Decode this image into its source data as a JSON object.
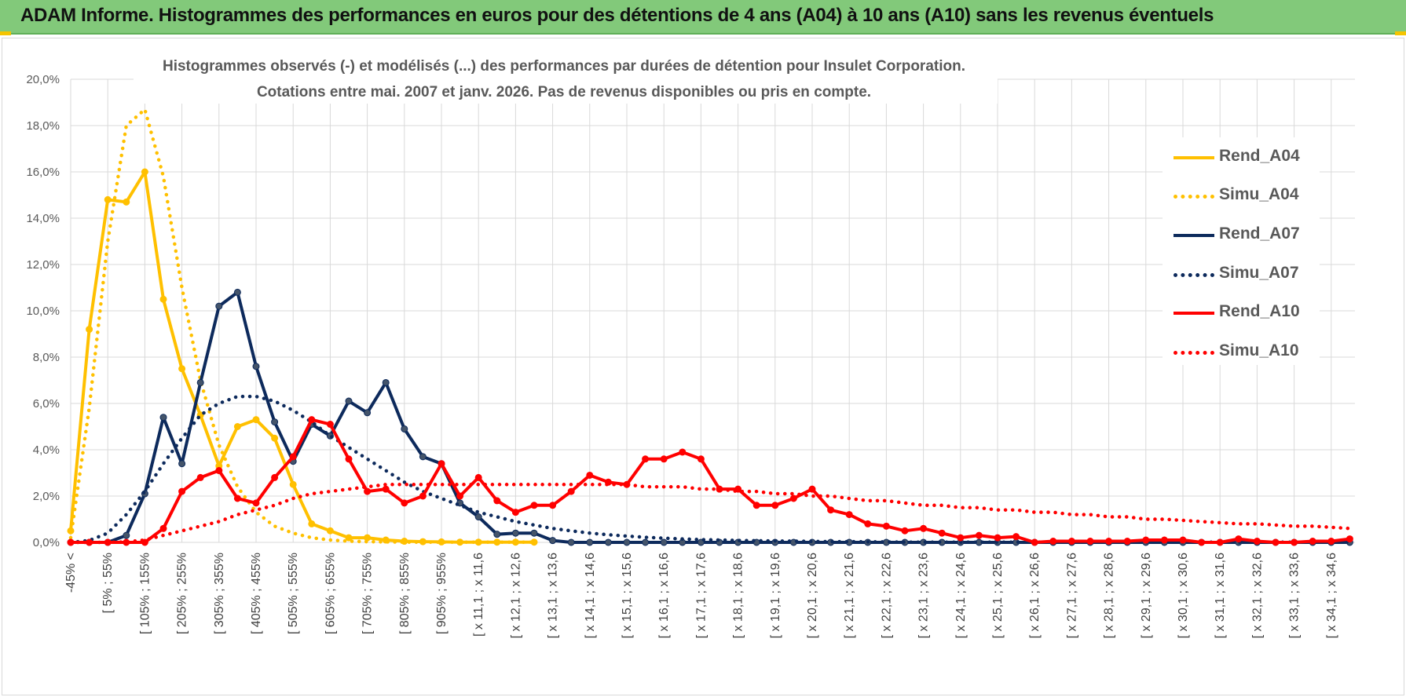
{
  "header": {
    "title": "ADAM Informe. Histogrammes des performances en euros pour des détentions de 4 ans (A04) à 10 ans (A10) sans les revenus éventuels"
  },
  "chart_data": {
    "type": "line",
    "title_line1": "Histogrammes observés (-) et modélisés (...) des performances par durées de détention pour Insulet Corporation.",
    "title_line2": "Cotations entre mai. 2007 et janv. 2026. Pas de revenus disponibles ou pris en compte.",
    "xlabel": "",
    "ylabel": "",
    "ylim": [
      0,
      0.2
    ],
    "y_ticks": [
      "0,0%",
      "2,0%",
      "4,0%",
      "6,0%",
      "8,0%",
      "10,0%",
      "12,0%",
      "14,0%",
      "16,0%",
      "18,0%",
      "20,0%"
    ],
    "grid": true,
    "legend_position": "right",
    "x_tick_labels": [
      "-45% <",
      "[ 5% ; 55%",
      "[ 105% ; 155%",
      "[ 205% ; 255%",
      "[ 305% ; 355%",
      "[ 405% ; 455%",
      "[ 505% ; 555%",
      "[ 605% ; 655%",
      "[ 705% ; 755%",
      "[ 805% ; 855%",
      "[ 905% ; 955%",
      "[ x 11,1 ; x 11,6",
      "[ x 12,1 ; x 12,6",
      "[ x 13,1 ; x 13,6",
      "[ x 14,1 ; x 14,6",
      "[ x 15,1 ; x 15,6",
      "[ x 16,1 ; x 16,6",
      "[ x 17,1 ; x 17,6",
      "[ x 18,1 ; x 18,6",
      "[ x 19,1 ; x 19,6",
      "[ x 20,1 ; x 20,6",
      "[ x 21,1 ; x 21,6",
      "[ x 22,1 ; x 22,6",
      "[ x 23,1 ; x 23,6",
      "[ x 24,1 ; x 24,6",
      "[ x 25,1 ; x 25,6",
      "[ x 26,1 ; x 26,6",
      "[ x 27,1 ; x 27,6",
      "[ x 28,1 ; x 28,6",
      "[ x 29,1 ; x 29,6",
      "[ x 30,1 ; x 30,6",
      "[ x 31,1 ; x 31,6",
      "[ x 32,1 ; x 32,6",
      "[ x 33,1 ; x 33,6",
      "[ x 34,1 ; x 34,6"
    ],
    "series": [
      {
        "name": "Rend_A04",
        "style": "solid",
        "color": "#ffc000",
        "start": 0,
        "values": [
          0.005,
          0.092,
          0.148,
          0.147,
          0.16,
          0.105,
          0.075,
          0.055,
          0.033,
          0.05,
          0.053,
          0.045,
          0.025,
          0.008,
          0.005,
          0.002,
          0.002,
          0.001,
          0.0005,
          0.0003,
          0.0002,
          0.0001,
          0.0001,
          0.0001,
          0.0001,
          0.0001
        ]
      },
      {
        "name": "Simu_A04",
        "style": "dotted",
        "color": "#ffc000",
        "start": 0,
        "values": [
          0.002,
          0.058,
          0.13,
          0.18,
          0.187,
          0.158,
          0.11,
          0.07,
          0.042,
          0.024,
          0.013,
          0.007,
          0.004,
          0.002,
          0.001,
          0.0005,
          0.0003,
          0.0002,
          0.0001,
          0.0001,
          0.0001,
          0.0001,
          0.0001,
          0.0001,
          0.0001,
          0.0001
        ]
      },
      {
        "name": "Rend_A07",
        "style": "solid",
        "color": "#0d2a5c",
        "start": 0,
        "values": [
          0,
          0,
          0,
          0.003,
          0.021,
          0.054,
          0.034,
          0.069,
          0.102,
          0.108,
          0.076,
          0.052,
          0.035,
          0.051,
          0.046,
          0.061,
          0.056,
          0.069,
          0.049,
          0.037,
          0.034,
          0.017,
          0.011,
          0.0035,
          0.004,
          0.004,
          0.0008,
          0,
          0,
          0,
          0,
          0,
          0,
          0,
          0,
          0,
          0,
          0,
          0,
          0,
          0,
          0,
          0,
          0,
          0,
          0,
          0,
          0,
          0,
          0,
          0,
          0,
          0,
          0,
          0,
          0,
          0,
          0,
          0,
          0,
          0,
          0,
          0,
          0,
          0,
          0,
          0,
          0,
          0,
          0
        ]
      },
      {
        "name": "Simu_A07",
        "style": "dotted",
        "color": "#0d2a5c",
        "start": 0,
        "values": [
          0,
          0.0008,
          0.004,
          0.012,
          0.022,
          0.034,
          0.045,
          0.055,
          0.06,
          0.063,
          0.063,
          0.061,
          0.057,
          0.052,
          0.046,
          0.041,
          0.036,
          0.031,
          0.026,
          0.022,
          0.019,
          0.016,
          0.013,
          0.011,
          0.009,
          0.0075,
          0.006,
          0.005,
          0.004,
          0.0033,
          0.0027,
          0.0022,
          0.0018,
          0.0015,
          0.0012,
          0.001,
          0.0008,
          0.0007,
          0.0006,
          0.0005,
          0.0004,
          0.0003,
          0.0003,
          0.0002,
          0.0002,
          0.0001,
          0.0001,
          0.0001,
          0.0001,
          0.0001,
          0.0001,
          0.0001,
          0.0001,
          0.0001,
          0.0001,
          0.0001,
          0.0001,
          0.0001,
          0.0001,
          0.0001,
          0.0001,
          0.0001,
          0.0001,
          0.0001,
          0.0001,
          0.0001,
          0.0001,
          0.0001,
          0.0001,
          0.0001
        ]
      },
      {
        "name": "Rend_A10",
        "style": "solid",
        "color": "#ff0000",
        "start": 0,
        "values": [
          0,
          0,
          0,
          0,
          0,
          0.006,
          0.022,
          0.028,
          0.031,
          0.019,
          0.017,
          0.028,
          0.037,
          0.053,
          0.051,
          0.036,
          0.022,
          0.023,
          0.017,
          0.02,
          0.034,
          0.02,
          0.028,
          0.018,
          0.013,
          0.016,
          0.016,
          0.022,
          0.029,
          0.026,
          0.025,
          0.036,
          0.036,
          0.039,
          0.036,
          0.023,
          0.023,
          0.016,
          0.016,
          0.019,
          0.023,
          0.014,
          0.012,
          0.008,
          0.007,
          0.005,
          0.006,
          0.004,
          0.002,
          0.003,
          0.002,
          0.0025,
          0,
          0.0005,
          0.0005,
          0.0005,
          0.0005,
          0.0005,
          0.001,
          0.001,
          0.001,
          0,
          0,
          0.0015,
          0.0005,
          0,
          0,
          0.0005,
          0.0005,
          0.0015
        ]
      },
      {
        "name": "Simu_A10",
        "style": "dotted",
        "color": "#ff0000",
        "start": 0,
        "values": [
          0,
          0,
          0,
          0.0002,
          0.001,
          0.003,
          0.005,
          0.007,
          0.009,
          0.012,
          0.014,
          0.016,
          0.019,
          0.021,
          0.022,
          0.023,
          0.024,
          0.025,
          0.025,
          0.025,
          0.025,
          0.025,
          0.025,
          0.025,
          0.025,
          0.025,
          0.025,
          0.025,
          0.025,
          0.025,
          0.025,
          0.024,
          0.024,
          0.024,
          0.023,
          0.023,
          0.022,
          0.022,
          0.021,
          0.021,
          0.02,
          0.02,
          0.019,
          0.018,
          0.018,
          0.017,
          0.016,
          0.016,
          0.015,
          0.015,
          0.014,
          0.014,
          0.013,
          0.013,
          0.012,
          0.012,
          0.011,
          0.011,
          0.01,
          0.01,
          0.0095,
          0.009,
          0.0085,
          0.008,
          0.008,
          0.0075,
          0.007,
          0.007,
          0.0065,
          0.006
        ]
      }
    ]
  }
}
